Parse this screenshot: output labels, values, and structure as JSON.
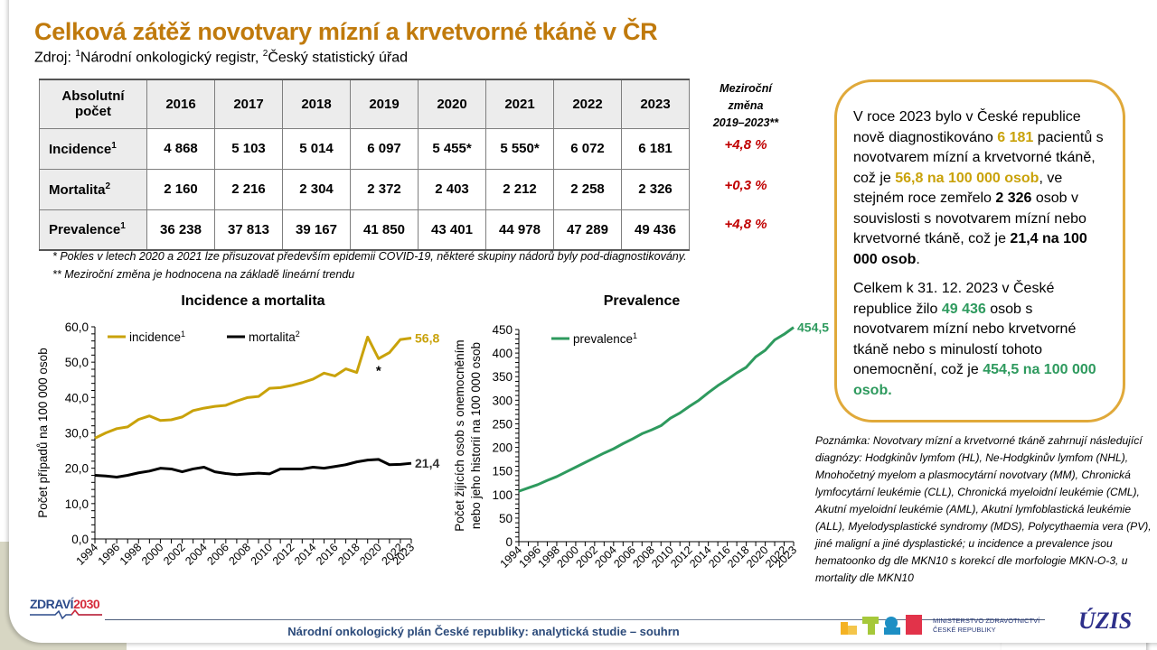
{
  "header": {
    "title": "Celková zátěž novotvary mízní a krvetvorné tkáně v ČR",
    "subtitle_prefix": "Zdroj: ",
    "source1_sup": "1",
    "source1": "Národní onkologický registr, ",
    "source2_sup": "2",
    "source2": "Český statistický úřad"
  },
  "table": {
    "corner_header": [
      "Absolutní",
      "počet"
    ],
    "years": [
      "2016",
      "2017",
      "2018",
      "2019",
      "2020",
      "2021",
      "2022",
      "2023"
    ],
    "change_header": [
      "Meziroční",
      "změna",
      "2019–2023**"
    ],
    "rows": [
      {
        "label": "Incidence",
        "sup": "1",
        "values": [
          "4 868",
          "5 103",
          "5 014",
          "6 097",
          "5 455*",
          "5 550*",
          "6 072",
          "6 181"
        ],
        "change": "+4,8 %"
      },
      {
        "label": "Mortalita",
        "sup": "2",
        "values": [
          "2 160",
          "2 216",
          "2 304",
          "2 372",
          "2 403",
          "2 212",
          "2 258",
          "2 326"
        ],
        "change": "+0,3 %"
      },
      {
        "label": "Prevalence",
        "sup": "1",
        "values": [
          "36 238",
          "37 813",
          "39 167",
          "41 850",
          "43 401",
          "44 978",
          "47 289",
          "49 436"
        ],
        "change": "+4,8 %"
      }
    ]
  },
  "footnotes": [
    "* Pokles v letech 2020 a 2021 lze přisuzovat především epidemii COVID-19, některé skupiny nádorů byly pod-diagnostikovány.",
    "** Meziroční změna je hodnocena na základě lineární trendu"
  ],
  "infobox": {
    "p1": {
      "t1": "V roce 2023 bylo v České republice nově diagnostikováno ",
      "h1": "6 181",
      "t2": " pacientů s novotvarem mízní a krvetvorné tkáně, což je ",
      "h2": "56,8 na 100 000 osob",
      "t3": ", ve stejném roce zemřelo ",
      "b1": "2 326",
      "t4": " osob v souvislosti s novotvarem mízní nebo krvetvorné tkáně, což je ",
      "b2": "21,4 na 100 000 osob",
      "t5": "."
    },
    "p2": {
      "t1": "Celkem k 31. 12. 2023 v České republice žilo ",
      "g1": "49 436",
      "t2": " osob s novotvarem mízní nebo krvetvorné tkáně nebo s minulostí tohoto onemocnění, což je ",
      "g2": "454,5 na 100 000 osob."
    }
  },
  "note": "Poznámka: Novotvary mízní a krvetvorné tkáně zahrnují následující diagnózy: Hodgkinův lymfom (HL), Ne-Hodgkinův lymfom (NHL), Mnohočetný myelom a plasmocytární novotvary (MM), Chronická lymfocytární leukémie (CLL), Chronická myeloidní leukémie (CML), Akutní myeloidní leukémie (AML), Akutní lymfoblastická leukémie (ALL), Myelodysplastické syndromy (MDS), Polycythaemia vera (PV), jiné maligní a jiné dysplastické; u incidence a prevalence jsou hematoonko dg dle MKN10 s korekcí dle morfologie MKN-O-3, u mortality dle MKN10",
  "colors": {
    "title": "#c07a0c",
    "incidence": "#c9a20a",
    "mortality": "#000000",
    "prevalence": "#2e9a5e",
    "change": "#c00000",
    "box_border": "#e0a93a",
    "corner_accent": "#1aa3c8"
  },
  "chart_data": [
    {
      "type": "line",
      "title": "Incidence a mortalita",
      "xlabel": "",
      "ylabel": "Počet případů na 100 000 osob",
      "ylim": [
        0,
        60
      ],
      "yticks": [
        "0,0",
        "10,0",
        "20,0",
        "30,0",
        "40,0",
        "50,0",
        "60,0"
      ],
      "ytick_values": [
        0,
        10,
        20,
        30,
        40,
        50,
        60
      ],
      "x": [
        1994,
        1995,
        1996,
        1997,
        1998,
        1999,
        2000,
        2001,
        2002,
        2003,
        2004,
        2005,
        2006,
        2007,
        2008,
        2009,
        2010,
        2011,
        2012,
        2013,
        2014,
        2015,
        2016,
        2017,
        2018,
        2019,
        2020,
        2021,
        2022,
        2023
      ],
      "xtick_labels": [
        "1994",
        "1996",
        "1998",
        "2000",
        "2002",
        "2004",
        "2006",
        "2008",
        "2010",
        "2012",
        "2014",
        "2016",
        "2018",
        "2020",
        "2022",
        "2023"
      ],
      "legend_position": "top",
      "series": [
        {
          "name": "incidence",
          "sup": "1",
          "color": "#c9a20a",
          "values": [
            28.5,
            30.0,
            31.2,
            31.7,
            33.8,
            34.8,
            33.5,
            33.7,
            34.5,
            36.3,
            37.0,
            37.5,
            37.8,
            39.0,
            40.0,
            40.3,
            42.6,
            42.8,
            43.4,
            44.2,
            45.2,
            46.9,
            46.1,
            48.1,
            47.1,
            57.1,
            51.0,
            52.7,
            56.4,
            56.8
          ],
          "end_label": "56,8"
        },
        {
          "name": "mortalita",
          "sup": "2",
          "color": "#000000",
          "values": [
            18.0,
            17.8,
            17.5,
            18.0,
            18.7,
            19.2,
            20.0,
            19.8,
            19.0,
            19.8,
            20.3,
            19.0,
            18.5,
            18.2,
            18.4,
            18.6,
            18.4,
            19.8,
            19.8,
            19.8,
            20.3,
            20.0,
            20.5,
            21.0,
            21.8,
            22.3,
            22.5,
            21.0,
            21.1,
            21.4
          ],
          "end_label": "21,4"
        }
      ],
      "annotations": [
        {
          "x": 2020,
          "text": "*"
        }
      ]
    },
    {
      "type": "line",
      "title": "Prevalence",
      "xlabel": "",
      "ylabel": [
        "Počet žijících osob s onemocněním",
        "nebo jeho historií na 100 000 osob"
      ],
      "ylim": [
        0,
        450
      ],
      "yticks": [
        "0",
        "50",
        "100",
        "150",
        "200",
        "250",
        "300",
        "350",
        "400",
        "450"
      ],
      "ytick_values": [
        0,
        50,
        100,
        150,
        200,
        250,
        300,
        350,
        400,
        450
      ],
      "x": [
        1994,
        1995,
        1996,
        1997,
        1998,
        1999,
        2000,
        2001,
        2002,
        2003,
        2004,
        2005,
        2006,
        2007,
        2008,
        2009,
        2010,
        2011,
        2012,
        2013,
        2014,
        2015,
        2016,
        2017,
        2018,
        2019,
        2020,
        2021,
        2022,
        2023
      ],
      "xtick_labels": [
        "1994",
        "1996",
        "1998",
        "2000",
        "2002",
        "2004",
        "2006",
        "2008",
        "2010",
        "2012",
        "2014",
        "2016",
        "2018",
        "2020",
        "2022",
        "2023"
      ],
      "legend_position": "top-left",
      "series": [
        {
          "name": "prevalence",
          "sup": "1",
          "color": "#2e9a5e",
          "values": [
            107,
            114,
            121,
            130,
            138,
            148,
            158,
            168,
            178,
            188,
            197,
            208,
            218,
            229,
            237,
            246,
            262,
            273,
            287,
            300,
            316,
            331,
            344,
            358,
            370,
            392,
            406,
            428,
            440,
            454.5
          ],
          "end_label": "454,5"
        }
      ]
    }
  ],
  "footer": {
    "text": "Národní onkologický plán České republiky: analytická studie – souhrn",
    "logo_left_part1": "ZDRAVÍ",
    "logo_left_part2": "2030",
    "ministry_line1": "MINISTERSTVO ZDRAVOTNICTVÍ",
    "ministry_line2": "ČESKÉ REPUBLIKY",
    "uzis": "ÚZIS"
  }
}
